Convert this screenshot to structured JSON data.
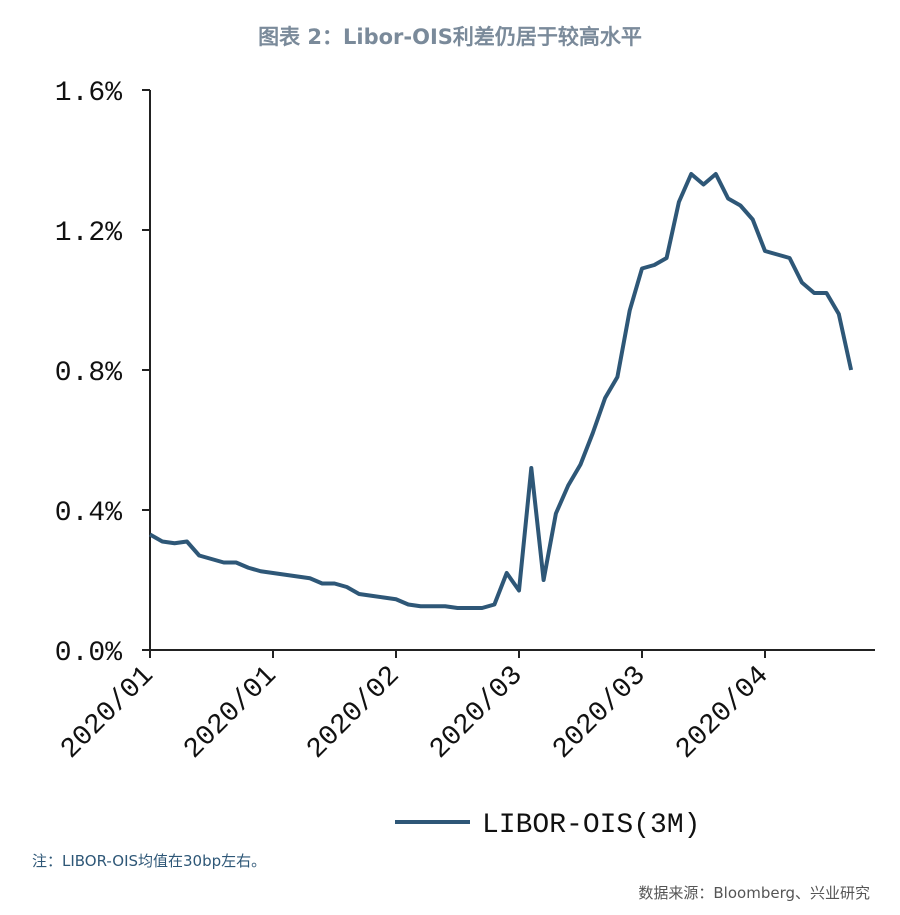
{
  "chart_data": {
    "type": "line",
    "title": "图表 2：Libor-OIS利差仍居于较高水平",
    "note": "注：LIBOR-OIS均值在30bp左右。",
    "source": "数据来源：Bloomberg、兴业研究",
    "categories": [
      "2020/01",
      null,
      null,
      null,
      null,
      null,
      null,
      null,
      null,
      null,
      "2020/01",
      null,
      null,
      null,
      null,
      null,
      null,
      null,
      null,
      null,
      "2020/02",
      null,
      null,
      null,
      null,
      null,
      null,
      null,
      null,
      null,
      "2020/03",
      null,
      null,
      null,
      null,
      null,
      null,
      null,
      null,
      null,
      "2020/03",
      null,
      null,
      null,
      null,
      null,
      null,
      null,
      null,
      null,
      "2020/04",
      null,
      null,
      null,
      null,
      null,
      null,
      null
    ],
    "series": [
      {
        "name": "LIBOR-OIS(3M)",
        "color": "#2e5777",
        "values": [
          0.33,
          0.31,
          0.305,
          0.31,
          0.27,
          0.26,
          0.25,
          0.25,
          0.235,
          0.225,
          0.22,
          0.215,
          0.21,
          0.205,
          0.19,
          0.19,
          0.18,
          0.16,
          0.155,
          0.15,
          0.145,
          0.13,
          0.125,
          0.125,
          0.125,
          0.12,
          0.12,
          0.12,
          0.13,
          0.22,
          0.17,
          0.52,
          0.2,
          0.39,
          0.47,
          0.53,
          0.62,
          0.72,
          0.78,
          0.97,
          1.09,
          1.1,
          1.12,
          1.28,
          1.36,
          1.33,
          1.36,
          1.29,
          1.27,
          1.23,
          1.14,
          1.13,
          1.12,
          1.05,
          1.02,
          1.02,
          0.96,
          0.8
        ]
      }
    ],
    "ylim": [
      0,
      1.6
    ],
    "yticks": [
      {
        "value": 0,
        "label": "0.0%"
      },
      {
        "value": 0.4,
        "label": "0.4%"
      },
      {
        "value": 0.8,
        "label": "0.8%"
      },
      {
        "value": 1.2,
        "label": "1.2%"
      },
      {
        "value": 1.6,
        "label": "1.6%"
      }
    ],
    "grid": false,
    "legend": "bottom"
  }
}
